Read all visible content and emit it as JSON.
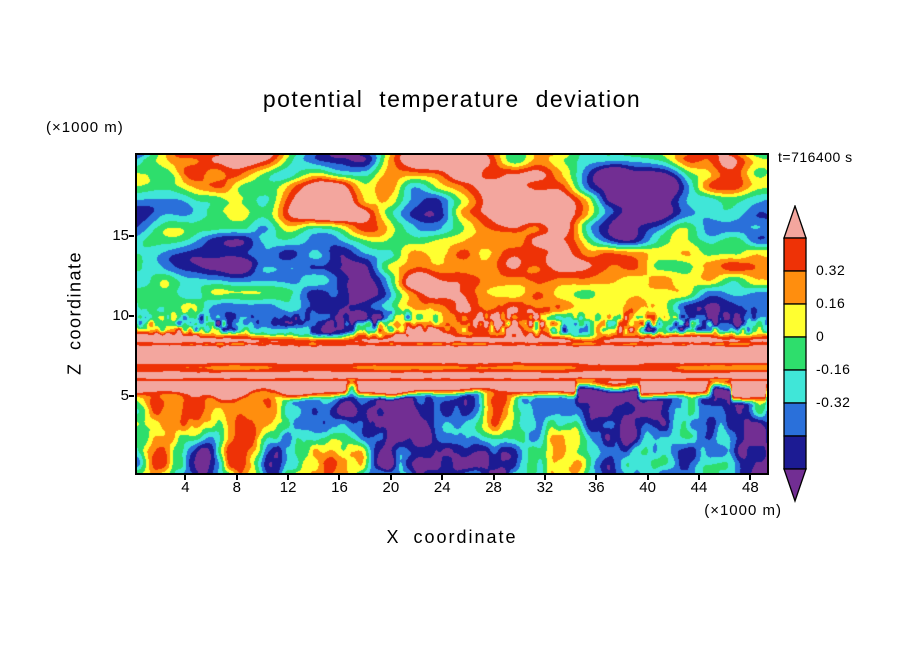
{
  "labels": {
    "title": "potential temperature deviation",
    "y_units": "(×1000 m)",
    "x_units": "(×1000 m)",
    "y_title": "Z coordinate",
    "x_title": "X coordinate",
    "time": "t=716400 s"
  },
  "chart_data": {
    "type": "heatmap",
    "title": "potential temperature deviation",
    "xlabel": "X coordinate (×1000 m)",
    "ylabel": "Z coordinate (×1000 m)",
    "time_label": "t=716400 s",
    "x_ticks": [
      4,
      8,
      12,
      16,
      20,
      24,
      28,
      32,
      36,
      40,
      44,
      48
    ],
    "y_ticks": [
      5,
      10,
      15
    ],
    "x_range": [
      0.2,
      49.3
    ],
    "y_range": [
      0.2,
      20.0
    ],
    "grid": false,
    "colorbar": {
      "orientation": "vertical",
      "position": "right",
      "tick_labels": [
        "0.32",
        "0.16",
        "0",
        "-0.16",
        "-0.32"
      ],
      "levels": [
        0.48,
        0.32,
        0.16,
        0,
        -0.16,
        -0.32,
        -0.48,
        -0.64
      ],
      "colors": {
        "above": "#f3a69e",
        "bands": [
          "#ee3206",
          "#ff8e0e",
          "#ffff30",
          "#2ede6c",
          "#40e6d8",
          "#2a70da",
          "#1c1b93"
        ],
        "below": "#722e93"
      }
    },
    "field_summary": "Turbulent 2D potential-temperature-deviation field: strongly saturated positive (salmon) and negative (purple) eddies aloft above z≈9 km with rainbow contour fringes; a stratified high-theta salmon layer between z≈5.3 and 8.6 km containing horizontal red/orange streaks (strong red line near z≈8.3 km and an orange band near z≈6.8 km) with a scalloped underside and purple pockets; convective boundary layer below z≈5 km with red/orange plume cores and yellow rings on a cyan-green background, with scattered blue/navy/purple pockets."
  }
}
